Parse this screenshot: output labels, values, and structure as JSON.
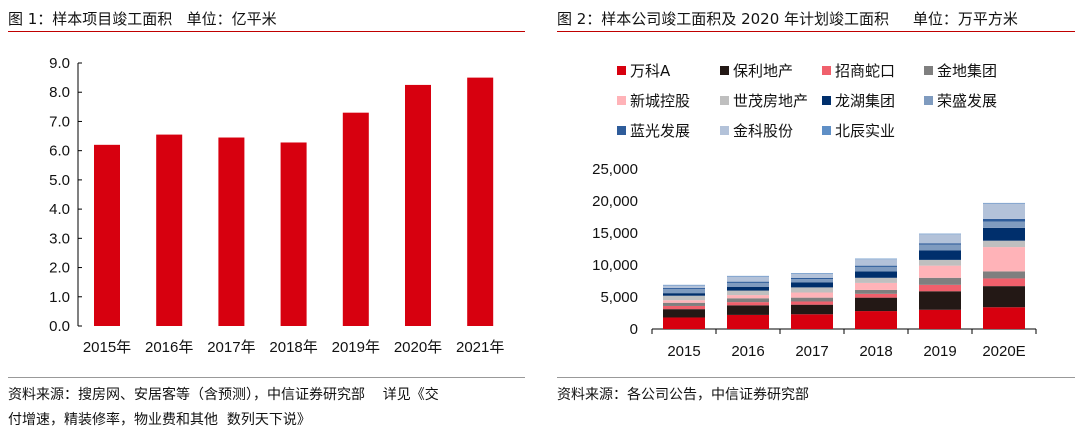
{
  "left": {
    "title": "图 1：样本项目竣工面积   单位：亿平米",
    "source": "资料来源：搜房网、安居客等（含预测），中信证券研究部    详见《交\n付增速，精装修率，物业费和其他  数列天下说》"
  },
  "right": {
    "title": "图 2：样本公司竣工面积及 2020 年计划竣工面积     单位：万平方米",
    "source": "资料来源：各公司公告，中信证券研究部"
  },
  "chart_data": [
    {
      "type": "bar",
      "title": "样本项目竣工面积",
      "ylabel": "亿平米",
      "categories": [
        "2015年",
        "2016年",
        "2017年",
        "2018年",
        "2019年",
        "2020年",
        "2021年"
      ],
      "values": [
        6.2,
        6.55,
        6.45,
        6.28,
        7.3,
        8.25,
        8.5
      ],
      "ylim": [
        0,
        9
      ],
      "yticks": [
        "0.0",
        "1.0",
        "2.0",
        "3.0",
        "4.0",
        "5.0",
        "6.0",
        "7.0",
        "8.0",
        "9.0"
      ],
      "color": "#d7000f"
    },
    {
      "type": "bar",
      "stacked": true,
      "title": "样本公司竣工面积及 2020 年计划竣工面积",
      "ylabel": "万平方米",
      "categories": [
        "2015",
        "2016",
        "2017",
        "2018",
        "2019",
        "2020E"
      ],
      "ylim": [
        0,
        25000
      ],
      "yticks": [
        "0",
        "5,000",
        "10,000",
        "15,000",
        "20,000",
        "25,000"
      ],
      "legend_position": "top",
      "series": [
        {
          "name": "万科A",
          "color": "#d7000f",
          "values": [
            1800,
            2200,
            2300,
            2800,
            3000,
            3400
          ]
        },
        {
          "name": "保利地产",
          "color": "#231815",
          "values": [
            1300,
            1500,
            1500,
            2100,
            2900,
            3300
          ]
        },
        {
          "name": "招商蛇口",
          "color": "#f0606c",
          "values": [
            500,
            500,
            500,
            600,
            1000,
            1200
          ]
        },
        {
          "name": "金地集团",
          "color": "#7f7f7f",
          "values": [
            500,
            600,
            600,
            600,
            1100,
            1100
          ]
        },
        {
          "name": "新城控股",
          "color": "#ffb3b8",
          "values": [
            400,
            500,
            800,
            1100,
            1900,
            3800
          ]
        },
        {
          "name": "世茂房地产",
          "color": "#bfbfbf",
          "values": [
            700,
            700,
            800,
            800,
            900,
            1000
          ]
        },
        {
          "name": "龙湖集团",
          "color": "#002f6c",
          "values": [
            400,
            600,
            800,
            1000,
            1500,
            2000
          ]
        },
        {
          "name": "荣盛发展",
          "color": "#7f9bbf",
          "values": [
            650,
            600,
            500,
            700,
            900,
            1000
          ]
        },
        {
          "name": "蓝光发展",
          "color": "#2e5c9a",
          "values": [
            150,
            200,
            200,
            200,
            200,
            400
          ]
        },
        {
          "name": "金科股份",
          "color": "#b3c2d9",
          "values": [
            400,
            800,
            650,
            1000,
            1400,
            2400
          ]
        },
        {
          "name": "北辰实业",
          "color": "#5f8fc6",
          "values": [
            100,
            100,
            100,
            100,
            100,
            100
          ]
        }
      ]
    }
  ]
}
